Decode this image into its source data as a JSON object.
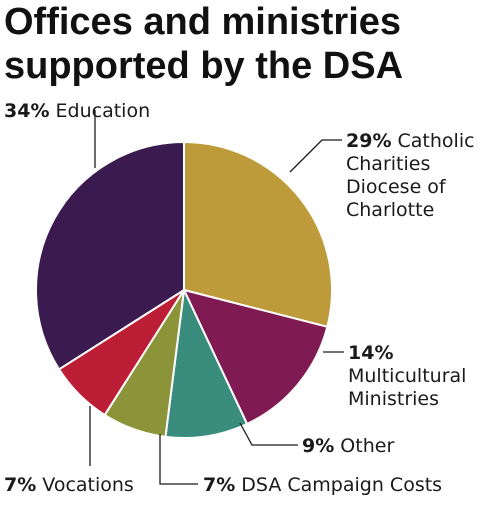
{
  "chart_data": {
    "type": "pie",
    "title_lines": [
      "Offices and ministries",
      "supported by the DSA"
    ],
    "slices": [
      {
        "pct_label": "29%",
        "label_lines": [
          "Catholic",
          "Charities",
          "Diocese of",
          "Charlotte"
        ],
        "value": 29,
        "color": "#BE9B3A"
      },
      {
        "pct_label": "14%",
        "label_lines": [
          "",
          "Multicultural",
          "Ministries"
        ],
        "value": 14,
        "color": "#7F1A52"
      },
      {
        "pct_label": "9%",
        "label_lines": [
          "Other"
        ],
        "value": 9,
        "color": "#3A8C7C"
      },
      {
        "pct_label": "7%",
        "label_lines": [
          "DSA Campaign Costs"
        ],
        "value": 7,
        "color": "#8B9438"
      },
      {
        "pct_label": "7%",
        "label_lines": [
          "Vocations"
        ],
        "value": 7,
        "color": "#BB1E35"
      },
      {
        "pct_label": "34%",
        "label_lines": [
          "Education"
        ],
        "value": 34,
        "color": "#3A1A4F"
      }
    ]
  }
}
